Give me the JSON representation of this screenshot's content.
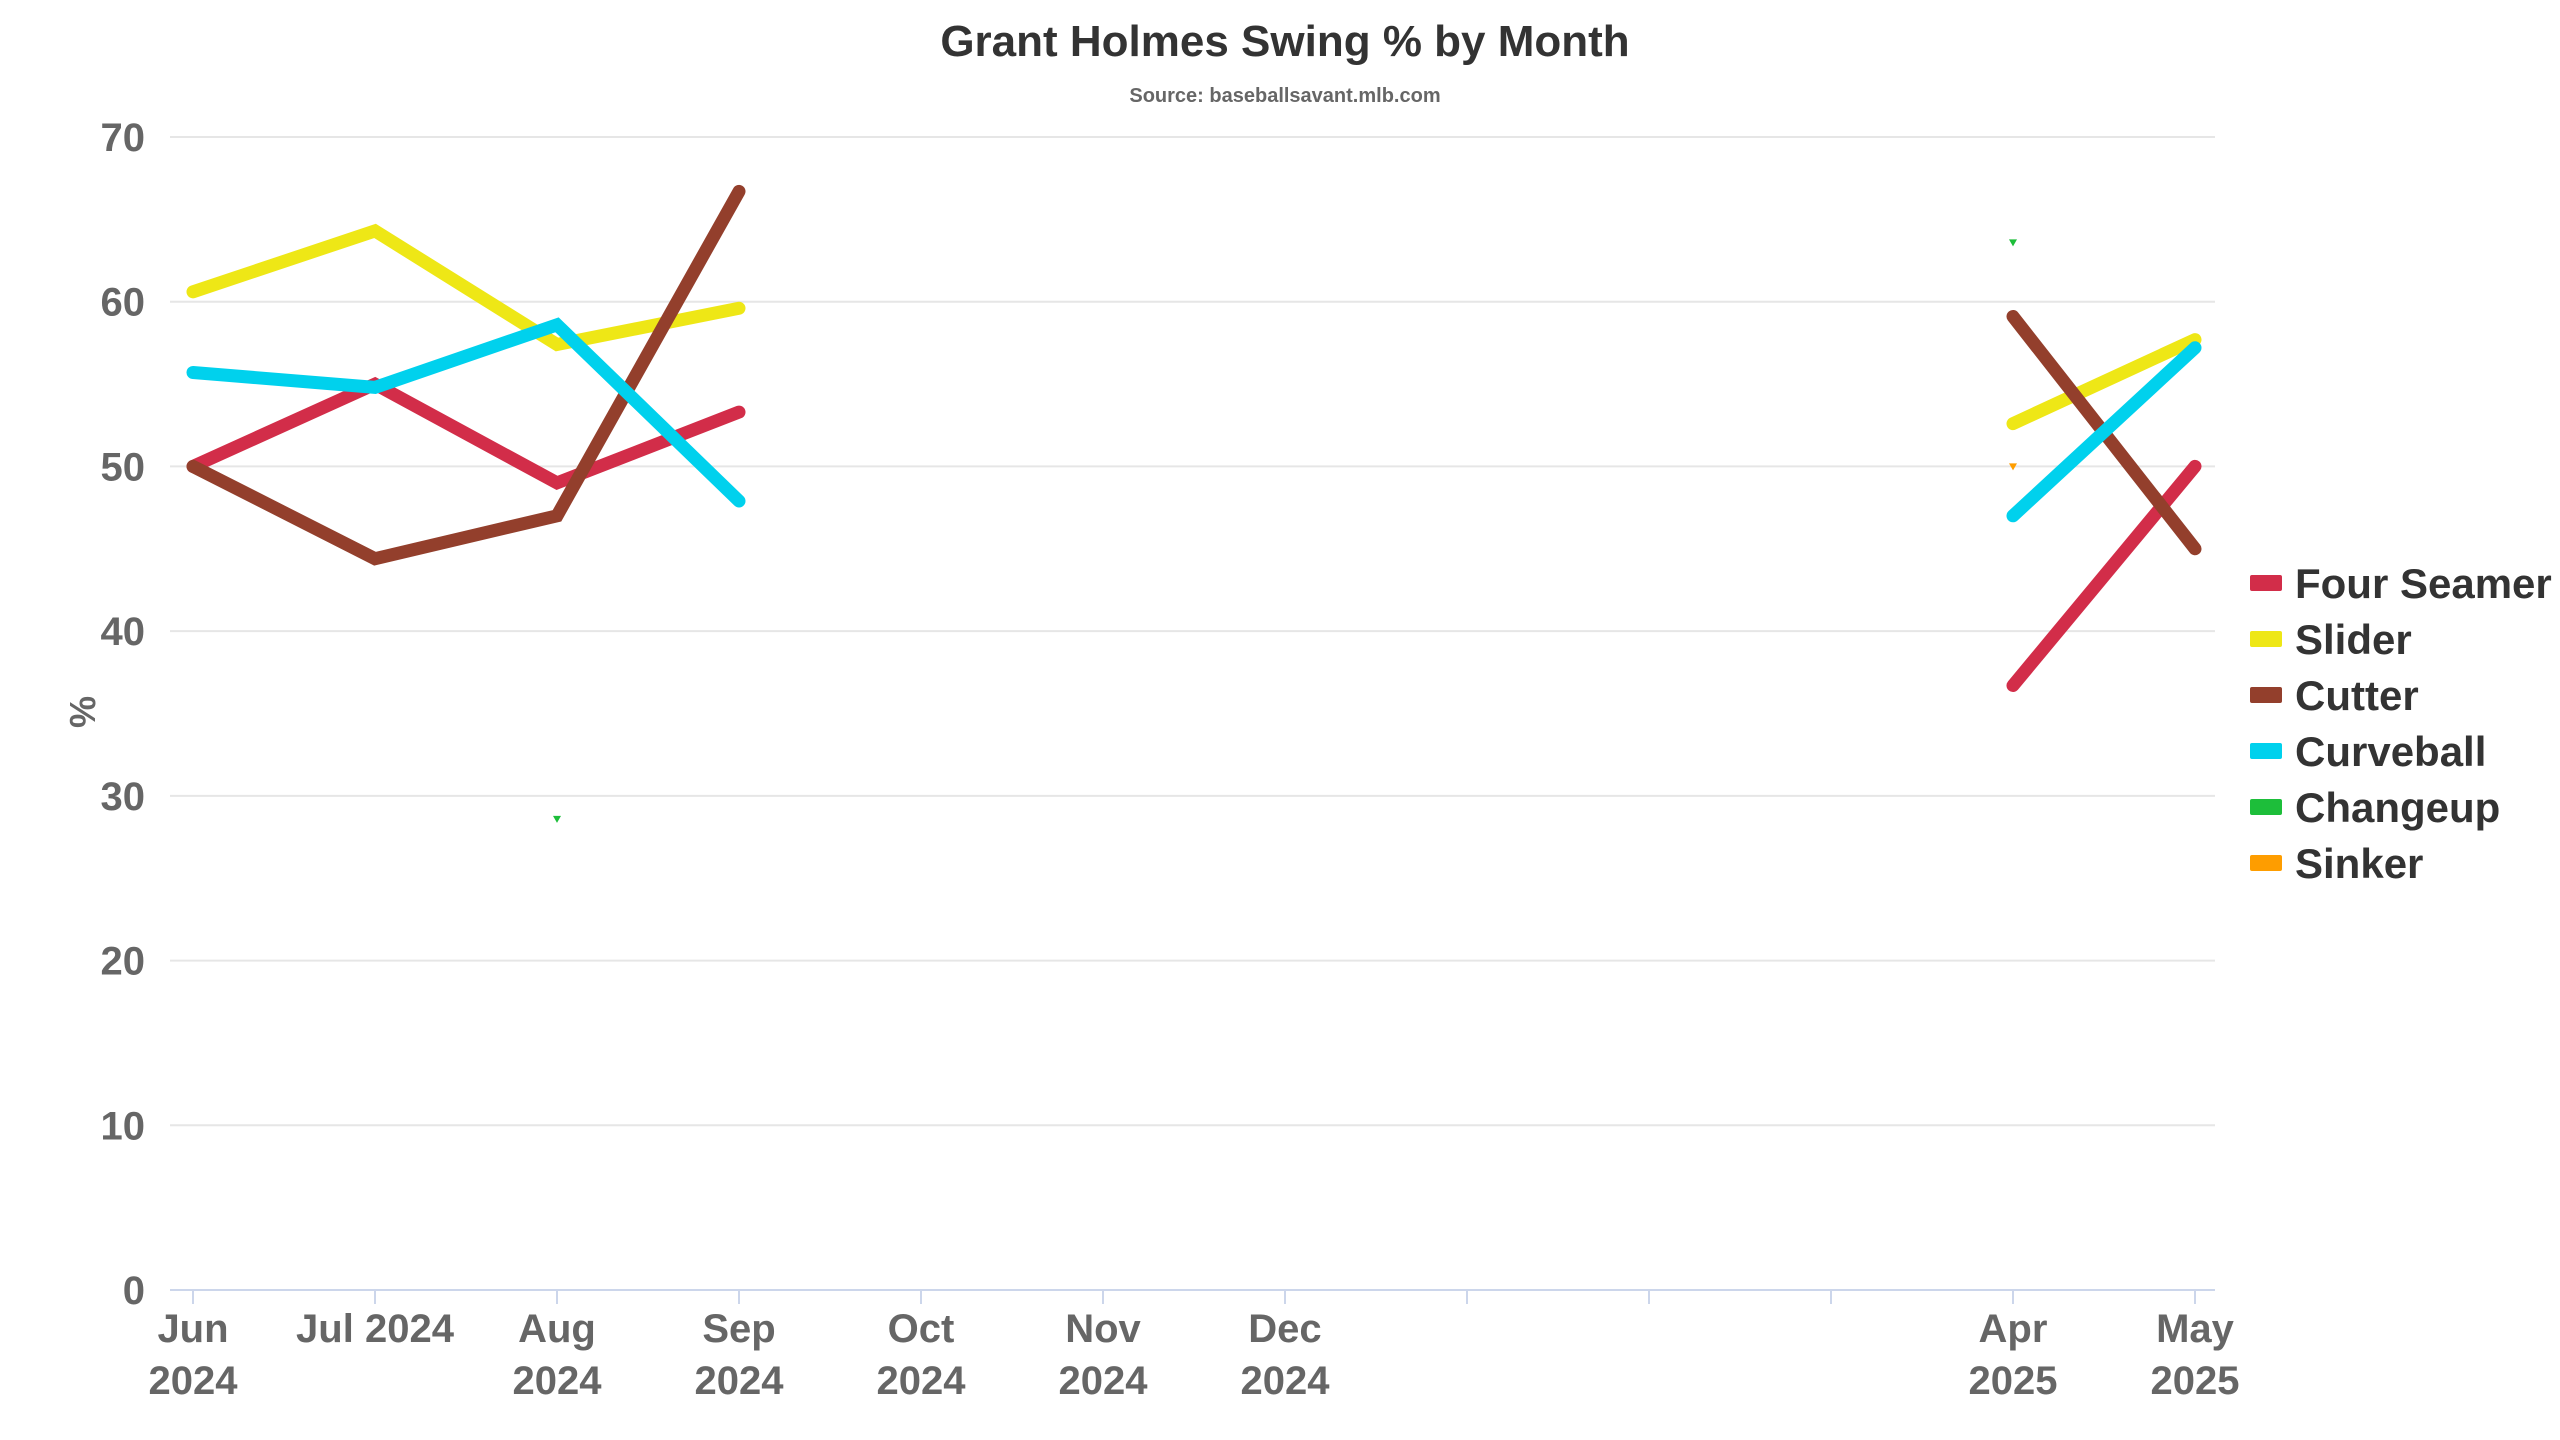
{
  "chart_data": {
    "type": "line",
    "title": "Grant Holmes Swing % by Month",
    "subtitle": "Source: baseballsavant.mlb.com",
    "ylabel": "%",
    "xlabel": "",
    "ylim": [
      0,
      70
    ],
    "yticks": [
      0,
      10,
      20,
      30,
      40,
      50,
      60,
      70
    ],
    "xlim": [
      "2024-06",
      "2025-05"
    ],
    "grid": true,
    "legend_position": "right",
    "x_ticks": [
      {
        "date": "2024-06",
        "label": [
          "Jun",
          "2024"
        ]
      },
      {
        "date": "2024-07",
        "label": [
          "Jul 2024"
        ]
      },
      {
        "date": "2024-08",
        "label": [
          "Aug",
          "2024"
        ]
      },
      {
        "date": "2024-09",
        "label": [
          "Sep",
          "2024"
        ]
      },
      {
        "date": "2024-10",
        "label": [
          "Oct",
          "2024"
        ]
      },
      {
        "date": "2024-11",
        "label": [
          "Nov",
          "2024"
        ]
      },
      {
        "date": "2024-12",
        "label": [
          "Dec",
          "2024"
        ]
      },
      {
        "date": "2025-01",
        "label": []
      },
      {
        "date": "2025-02",
        "label": []
      },
      {
        "date": "2025-03",
        "label": []
      },
      {
        "date": "2025-04",
        "label": [
          "Apr",
          "2025"
        ]
      },
      {
        "date": "2025-05",
        "label": [
          "May",
          "2025"
        ]
      }
    ],
    "series": [
      {
        "name": "Four Seamer",
        "color": "#d22d49",
        "points": [
          [
            "2024-06",
            50.0
          ],
          [
            "2024-07",
            55.0
          ],
          [
            "2024-08",
            49.0
          ],
          [
            "2024-09",
            53.3
          ]
        ],
        "points2": [
          [
            "2025-04",
            36.7
          ],
          [
            "2025-05",
            50.0
          ]
        ]
      },
      {
        "name": "Slider",
        "color": "#eee716",
        "points": [
          [
            "2024-06",
            60.6
          ],
          [
            "2024-07",
            64.3
          ],
          [
            "2024-08",
            57.4
          ],
          [
            "2024-09",
            59.6
          ]
        ],
        "points2": [
          [
            "2025-04",
            52.6
          ],
          [
            "2025-05",
            57.7
          ]
        ]
      },
      {
        "name": "Cutter",
        "color": "#933f2c",
        "points": [
          [
            "2024-06",
            50.0
          ],
          [
            "2024-07",
            44.4
          ],
          [
            "2024-08",
            47.0
          ],
          [
            "2024-09",
            66.7
          ]
        ],
        "points2": [
          [
            "2025-04",
            59.1
          ],
          [
            "2025-05",
            45.0
          ]
        ]
      },
      {
        "name": "Curveball",
        "color": "#00d1ed",
        "points": [
          [
            "2024-06",
            55.7
          ],
          [
            "2024-07",
            54.8
          ],
          [
            "2024-08",
            58.6
          ],
          [
            "2024-09",
            47.9
          ]
        ],
        "points2": [
          [
            "2025-04",
            47.0
          ],
          [
            "2025-05",
            57.2
          ]
        ]
      },
      {
        "name": "Changeup",
        "color": "#1dbe3a",
        "points": [
          [
            "2024-08",
            28.6
          ]
        ],
        "points2": [
          [
            "2025-04",
            63.6
          ]
        ]
      },
      {
        "name": "Sinker",
        "color": "#fe9d00",
        "points": [],
        "points2": [
          [
            "2025-04",
            50.0
          ]
        ]
      }
    ]
  }
}
